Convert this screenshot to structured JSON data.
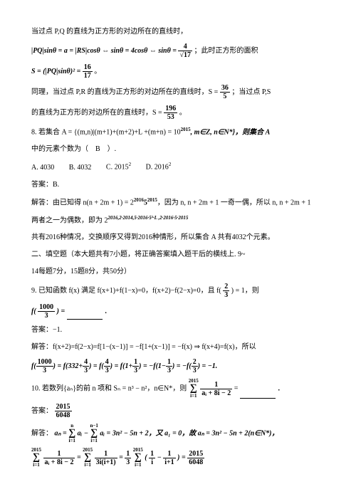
{
  "p1": "当过点 P,Q 的直线为正方形的对边所在的直线时，",
  "eq1_a": "|PQ|sinθ = a = |RS|cosθ ⇔ sinθ = 4cosθ ⇔ sinθ =",
  "eq1_frac_n": "4",
  "eq1_frac_d": "√17",
  "eq1_b": "；此时正方形的面积",
  "eq2_a": "S = (|PQ|sinθ)² =",
  "eq2_frac_n": "16",
  "eq2_frac_d": "17",
  "eq2_b": "。",
  "p3_a": "同理，当过点 P,R 的直线为正方形的对边所在的直线时，S =",
  "p3_f1n": "36",
  "p3_f1d": "5",
  "p3_b": "；当过点 P,S",
  "p4_a": "的直线为正方形的对边所在的直线时，S =",
  "p4_fn": "196",
  "p4_fd": "53",
  "p4_b": "。",
  "q8_a": "8. 若集合 A = {(m,n)|(m+1)+(m+2)+L +(m+n) = 10",
  "q8_expA": "2015",
  "q8_b": ", m∈Z, n∈N*}，则集合 A",
  "q8_c": "中的元素个数为（　B　）.",
  "optA": "A. 4030",
  "optB": "B. 4032",
  "optC_a": "C. 2015",
  "optC_e": "2",
  "optD_a": "D. 2016",
  "optD_e": "2",
  "ans8": "答案：B.",
  "s8_a_pre": "解答：由已知得 n(n + 2m + 1) = 2",
  "s8_a_exp": "2016",
  "s8_a_mid": "5",
  "s8_a_exp2": "2015",
  "s8_a_post": "，因为 n, n + 2m + 1 一奇一偶，所以 n, n + 2m + 1",
  "s8_b_pre": "两者之一为偶数，即为 2",
  "s8_b_seq": "2016,2·2014,5·2016·5²·L ,2·2016·5·2015",
  "s8_c": "共有2016种情况，交换顺序又得到2016种情形，所以集合 A 共有4032个元素。",
  "sec2_a": "二、填空题（本大题共有7小题，将正确答案填入题干后的横线上. 9~",
  "sec2_b": "14每题7分，15题8分，共50分）",
  "q9_a": "9. 已知函数 f(x) 满足 f(x+1)+f(1−x)=0，f(x+2)−f(2−x)=0，且 f(",
  "q9_f1n": "2",
  "q9_f1d": "3",
  "q9_b": ") = 1，则",
  "q9_c_pre": "f(",
  "q9_c_fn": "1000",
  "q9_c_fd": "3",
  "q9_c_post": ") = ",
  "q9_c_end": "．",
  "ans9": "答案：−1.",
  "s9_a": "解答：f(x+2)=f(2−x)=f[1−(x−1)] = −f[1+(x−1)] = −f(x) ⇒ f(x+4)=f(x)，所以",
  "s9_b_pre": "f(",
  "s9_b_f1n": "1000",
  "s9_b_f1d": "3",
  "s9_b_mid1": ") = f(332+",
  "s9_b_f2n": "4",
  "s9_b_f2d": "3",
  "s9_b_mid2": ") = f(",
  "s9_b_f3n": "4",
  "s9_b_f3d": "3",
  "s9_b_mid3": ") = f(1+",
  "s9_b_f4n": "1",
  "s9_b_f4d": "3",
  "s9_b_mid4": ") = −f(1−",
  "s9_b_f5n": "1",
  "s9_b_f5d": "3",
  "s9_b_mid5": ") = −f(",
  "s9_b_f6n": "2",
  "s9_b_f6d": "3",
  "s9_b_post": ") = −1.",
  "q10_a": "10. 若数列{aₙ}的前 n 项和 Sₙ = n³ − n²，n∈N*，则",
  "q10_sumtop": "2015",
  "q10_sumbot": "i=1",
  "q10_sumfn": "1",
  "q10_sumfd": "aᵢ + 8i − 2",
  "q10_b": " = ",
  "q10_c": "．",
  "ans10_pre": "答案：",
  "ans10_fn": "2015",
  "ans10_fd": "6048",
  "s10_pre": "解答：",
  "s10_a": "aₙ =",
  "s10_sum1t": "n",
  "s10_sum1b": "i=1",
  "s10_mid1": "aᵢ −",
  "s10_sum2t": "n−1",
  "s10_sum2b": "i=1",
  "s10_mid2": "aᵢ = 3n² − 5n + 2，又 a₁ = 0，故 aₙ = 3n² − 5n + 2(n∈N*)，",
  "s10b_sum1t": "2015",
  "s10b_sum1b": "i=1",
  "s10b_f1n": "1",
  "s10b_f1d": "aᵢ + 8i − 2",
  "s10b_eq1": " = ",
  "s10b_sum2t": "2015",
  "s10b_sum2b": "i=1",
  "s10b_f2n": "1",
  "s10b_f2d": "3i(i+1)",
  "s10b_eq2": " = ",
  "s10b_pref": "1",
  "s10b_prefd": "3",
  "s10b_sum3t": "2015",
  "s10b_sum3b": "i=1",
  "s10b_par": "(",
  "s10b_f3n": "1",
  "s10b_f3d": "i",
  "s10b_minus": " − ",
  "s10b_f4n": "1",
  "s10b_f4d": "i+1",
  "s10b_parc": ") = ",
  "s10b_f5n": "2015",
  "s10b_f5d": "6048"
}
